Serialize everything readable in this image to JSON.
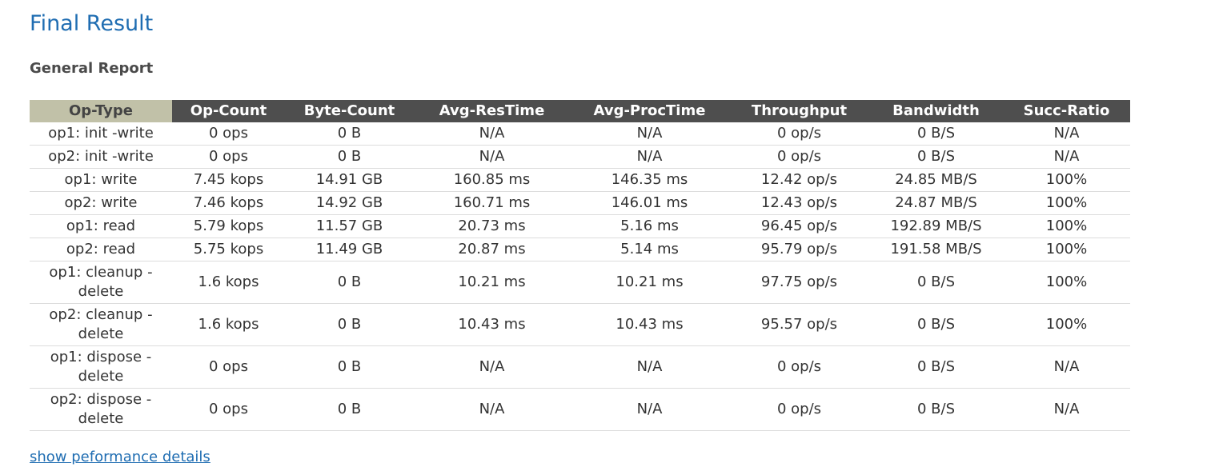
{
  "page": {
    "title": "Final Result",
    "section_title": "General Report",
    "details_link": "show peformance details"
  },
  "colors": {
    "title": "#1f6db2",
    "header_bg": "#4e4e4e",
    "first_header_bg": "#c1c1a8",
    "link": "#1f6db2"
  },
  "report": {
    "columns": [
      "Op-Type",
      "Op-Count",
      "Byte-Count",
      "Avg-ResTime",
      "Avg-ProcTime",
      "Throughput",
      "Bandwidth",
      "Succ-Ratio"
    ],
    "rows": [
      [
        "op1: init -write",
        "0 ops",
        "0 B",
        "N/A",
        "N/A",
        "0 op/s",
        "0 B/S",
        "N/A"
      ],
      [
        "op2: init -write",
        "0 ops",
        "0 B",
        "N/A",
        "N/A",
        "0 op/s",
        "0 B/S",
        "N/A"
      ],
      [
        "op1: write",
        "7.45 kops",
        "14.91 GB",
        "160.85 ms",
        "146.35 ms",
        "12.42 op/s",
        "24.85 MB/S",
        "100%"
      ],
      [
        "op2: write",
        "7.46 kops",
        "14.92 GB",
        "160.71 ms",
        "146.01 ms",
        "12.43 op/s",
        "24.87 MB/S",
        "100%"
      ],
      [
        "op1: read",
        "5.79 kops",
        "11.57 GB",
        "20.73 ms",
        "5.16 ms",
        "96.45 op/s",
        "192.89 MB/S",
        "100%"
      ],
      [
        "op2: read",
        "5.75 kops",
        "11.49 GB",
        "20.87 ms",
        "5.14 ms",
        "95.79 op/s",
        "191.58 MB/S",
        "100%"
      ],
      [
        "op1: cleanup -delete",
        "1.6 kops",
        "0 B",
        "10.21 ms",
        "10.21 ms",
        "97.75 op/s",
        "0 B/S",
        "100%"
      ],
      [
        "op2: cleanup -delete",
        "1.6 kops",
        "0 B",
        "10.43 ms",
        "10.43 ms",
        "95.57 op/s",
        "0 B/S",
        "100%"
      ],
      [
        "op1: dispose -delete",
        "0 ops",
        "0 B",
        "N/A",
        "N/A",
        "0 op/s",
        "0 B/S",
        "N/A"
      ],
      [
        "op2: dispose -delete",
        "0 ops",
        "0 B",
        "N/A",
        "N/A",
        "0 op/s",
        "0 B/S",
        "N/A"
      ]
    ]
  }
}
